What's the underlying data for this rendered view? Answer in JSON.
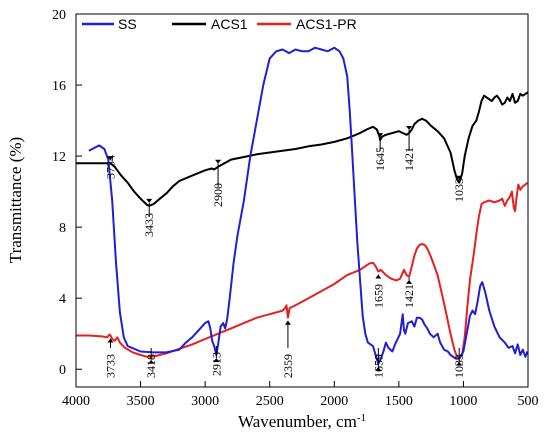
{
  "chart_data": {
    "type": "line",
    "xlabel": "Wavenumber, cm",
    "xlabel_superscript": "-1",
    "ylabel": "Transmittance (%)",
    "xlim": [
      4000,
      500
    ],
    "ylim": [
      -1,
      20
    ],
    "x_reversed": true,
    "x_ticks": [
      4000,
      3500,
      3000,
      2500,
      2000,
      1500,
      1000,
      500
    ],
    "y_ticks": [
      0,
      4,
      8,
      12,
      16,
      20
    ],
    "legend_position": "top",
    "series": [
      {
        "name": "SS",
        "color": "#1f1fd6",
        "points": [
          [
            3900,
            12.3
          ],
          [
            3820,
            12.6
          ],
          [
            3780,
            12.4
          ],
          [
            3750,
            11.8
          ],
          [
            3720,
            9.5
          ],
          [
            3690,
            6.0
          ],
          [
            3660,
            3.2
          ],
          [
            3630,
            1.8
          ],
          [
            3600,
            1.3
          ],
          [
            3500,
            1.0
          ],
          [
            3400,
            0.95
          ],
          [
            3300,
            0.95
          ],
          [
            3200,
            1.1
          ],
          [
            3150,
            1.5
          ],
          [
            3100,
            1.8
          ],
          [
            3050,
            2.2
          ],
          [
            3000,
            2.6
          ],
          [
            2975,
            2.7
          ],
          [
            2960,
            2.3
          ],
          [
            2945,
            1.6
          ],
          [
            2930,
            1.3
          ],
          [
            2913,
            0.8
          ],
          [
            2900,
            1.4
          ],
          [
            2880,
            2.4
          ],
          [
            2860,
            2.6
          ],
          [
            2845,
            2.3
          ],
          [
            2830,
            2.8
          ],
          [
            2810,
            4.0
          ],
          [
            2780,
            6.0
          ],
          [
            2750,
            7.5
          ],
          [
            2700,
            9.5
          ],
          [
            2650,
            12.0
          ],
          [
            2600,
            14.0
          ],
          [
            2550,
            16.0
          ],
          [
            2500,
            17.5
          ],
          [
            2450,
            17.9
          ],
          [
            2400,
            18.0
          ],
          [
            2350,
            17.8
          ],
          [
            2300,
            18.0
          ],
          [
            2250,
            17.9
          ],
          [
            2200,
            17.9
          ],
          [
            2150,
            18.1
          ],
          [
            2100,
            18.0
          ],
          [
            2050,
            17.9
          ],
          [
            2000,
            18.1
          ],
          [
            1960,
            17.9
          ],
          [
            1930,
            17.5
          ],
          [
            1900,
            16.5
          ],
          [
            1880,
            14.5
          ],
          [
            1860,
            12.0
          ],
          [
            1840,
            9.5
          ],
          [
            1820,
            7.0
          ],
          [
            1800,
            5.0
          ],
          [
            1780,
            3.0
          ],
          [
            1760,
            2.0
          ],
          [
            1740,
            1.5
          ],
          [
            1700,
            1.3
          ],
          [
            1680,
            0.8
          ],
          [
            1659,
            0.3
          ],
          [
            1640,
            0.6
          ],
          [
            1620,
            1.0
          ],
          [
            1600,
            1.5
          ],
          [
            1580,
            1.2
          ],
          [
            1550,
            1.0
          ],
          [
            1530,
            1.4
          ],
          [
            1510,
            1.7
          ],
          [
            1490,
            2.0
          ],
          [
            1470,
            3.1
          ],
          [
            1460,
            2.2
          ],
          [
            1450,
            2.0
          ],
          [
            1430,
            2.6
          ],
          [
            1400,
            2.7
          ],
          [
            1380,
            2.4
          ],
          [
            1360,
            2.9
          ],
          [
            1340,
            2.9
          ],
          [
            1320,
            2.8
          ],
          [
            1300,
            2.5
          ],
          [
            1280,
            2.3
          ],
          [
            1260,
            2.0
          ],
          [
            1230,
            1.8
          ],
          [
            1200,
            2.0
          ],
          [
            1180,
            1.5
          ],
          [
            1150,
            1.1
          ],
          [
            1120,
            1.0
          ],
          [
            1100,
            0.8
          ],
          [
            1060,
            0.6
          ],
          [
            1033,
            0.6
          ],
          [
            1000,
            1.0
          ],
          [
            975,
            2.0
          ],
          [
            950,
            3.0
          ],
          [
            930,
            3.3
          ],
          [
            910,
            3.1
          ],
          [
            890,
            3.8
          ],
          [
            870,
            4.7
          ],
          [
            855,
            4.9
          ],
          [
            830,
            4.3
          ],
          [
            800,
            3.3
          ],
          [
            760,
            2.4
          ],
          [
            720,
            1.8
          ],
          [
            680,
            1.5
          ],
          [
            650,
            1.2
          ],
          [
            620,
            1.3
          ],
          [
            600,
            0.9
          ],
          [
            580,
            1.4
          ],
          [
            560,
            0.8
          ],
          [
            540,
            1.1
          ],
          [
            520,
            0.7
          ],
          [
            505,
            1.0
          ]
        ]
      },
      {
        "name": "ACS1",
        "color": "#000000",
        "points": [
          [
            4000,
            11.6
          ],
          [
            3900,
            11.6
          ],
          [
            3800,
            11.6
          ],
          [
            3734,
            11.6
          ],
          [
            3700,
            11.4
          ],
          [
            3650,
            10.9
          ],
          [
            3600,
            10.5
          ],
          [
            3550,
            10.0
          ],
          [
            3500,
            9.6
          ],
          [
            3450,
            9.25
          ],
          [
            3433,
            9.2
          ],
          [
            3400,
            9.3
          ],
          [
            3350,
            9.6
          ],
          [
            3300,
            9.9
          ],
          [
            3250,
            10.3
          ],
          [
            3200,
            10.6
          ],
          [
            3100,
            10.9
          ],
          [
            3000,
            11.2
          ],
          [
            2950,
            11.3
          ],
          [
            2930,
            11.25
          ],
          [
            2900,
            11.4
          ],
          [
            2850,
            11.6
          ],
          [
            2800,
            11.8
          ],
          [
            2700,
            11.95
          ],
          [
            2600,
            12.1
          ],
          [
            2500,
            12.2
          ],
          [
            2400,
            12.3
          ],
          [
            2300,
            12.4
          ],
          [
            2200,
            12.55
          ],
          [
            2100,
            12.65
          ],
          [
            2000,
            12.8
          ],
          [
            1950,
            12.9
          ],
          [
            1900,
            13.0
          ],
          [
            1850,
            13.15
          ],
          [
            1800,
            13.3
          ],
          [
            1750,
            13.5
          ],
          [
            1700,
            13.65
          ],
          [
            1670,
            13.5
          ],
          [
            1650,
            13.1
          ],
          [
            1645,
            12.9
          ],
          [
            1630,
            13.1
          ],
          [
            1600,
            13.2
          ],
          [
            1550,
            13.3
          ],
          [
            1500,
            13.4
          ],
          [
            1470,
            13.3
          ],
          [
            1440,
            13.2
          ],
          [
            1421,
            13.3
          ],
          [
            1400,
            13.5
          ],
          [
            1380,
            13.8
          ],
          [
            1350,
            14.0
          ],
          [
            1320,
            14.1
          ],
          [
            1290,
            14.0
          ],
          [
            1250,
            13.7
          ],
          [
            1200,
            13.4
          ],
          [
            1150,
            13.0
          ],
          [
            1100,
            12.2
          ],
          [
            1070,
            11.2
          ],
          [
            1050,
            10.7
          ],
          [
            1033,
            10.5
          ],
          [
            1010,
            11.0
          ],
          [
            990,
            12.0
          ],
          [
            960,
            13.0
          ],
          [
            930,
            13.7
          ],
          [
            900,
            14.0
          ],
          [
            880,
            14.5
          ],
          [
            860,
            15.1
          ],
          [
            840,
            15.4
          ],
          [
            820,
            15.3
          ],
          [
            800,
            15.2
          ],
          [
            780,
            15.1
          ],
          [
            760,
            15.3
          ],
          [
            740,
            15.4
          ],
          [
            720,
            15.2
          ],
          [
            700,
            14.9
          ],
          [
            680,
            15.0
          ],
          [
            660,
            15.3
          ],
          [
            640,
            15.1
          ],
          [
            620,
            15.5
          ],
          [
            600,
            15.0
          ],
          [
            580,
            15.1
          ],
          [
            560,
            15.5
          ],
          [
            540,
            15.4
          ],
          [
            520,
            15.5
          ],
          [
            500,
            15.6
          ]
        ]
      },
      {
        "name": "ACS1-PR",
        "color": "#e81f1f",
        "points": [
          [
            4000,
            1.9
          ],
          [
            3900,
            1.9
          ],
          [
            3800,
            1.85
          ],
          [
            3760,
            1.8
          ],
          [
            3740,
            1.95
          ],
          [
            3733,
            1.9
          ],
          [
            3720,
            1.7
          ],
          [
            3700,
            1.6
          ],
          [
            3680,
            1.8
          ],
          [
            3660,
            1.5
          ],
          [
            3620,
            1.2
          ],
          [
            3560,
            0.95
          ],
          [
            3500,
            0.8
          ],
          [
            3450,
            0.7
          ],
          [
            3418,
            0.7
          ],
          [
            3380,
            0.75
          ],
          [
            3300,
            0.9
          ],
          [
            3200,
            1.15
          ],
          [
            3100,
            1.4
          ],
          [
            3000,
            1.7
          ],
          [
            2900,
            2.0
          ],
          [
            2800,
            2.3
          ],
          [
            2700,
            2.6
          ],
          [
            2600,
            2.9
          ],
          [
            2500,
            3.1
          ],
          [
            2400,
            3.3
          ],
          [
            2380,
            3.45
          ],
          [
            2370,
            3.6
          ],
          [
            2359,
            2.9
          ],
          [
            2345,
            3.45
          ],
          [
            2330,
            3.5
          ],
          [
            2300,
            3.6
          ],
          [
            2200,
            4.0
          ],
          [
            2100,
            4.4
          ],
          [
            2000,
            4.8
          ],
          [
            1900,
            5.3
          ],
          [
            1800,
            5.6
          ],
          [
            1760,
            5.8
          ],
          [
            1730,
            5.95
          ],
          [
            1700,
            6.0
          ],
          [
            1680,
            5.8
          ],
          [
            1659,
            5.5
          ],
          [
            1640,
            5.6
          ],
          [
            1600,
            5.3
          ],
          [
            1560,
            5.1
          ],
          [
            1520,
            5.0
          ],
          [
            1490,
            5.1
          ],
          [
            1460,
            5.6
          ],
          [
            1440,
            5.3
          ],
          [
            1421,
            5.2
          ],
          [
            1400,
            5.8
          ],
          [
            1380,
            6.4
          ],
          [
            1360,
            6.8
          ],
          [
            1340,
            7.0
          ],
          [
            1320,
            7.05
          ],
          [
            1300,
            7.0
          ],
          [
            1280,
            6.8
          ],
          [
            1250,
            6.3
          ],
          [
            1200,
            5.3
          ],
          [
            1150,
            3.7
          ],
          [
            1100,
            2.0
          ],
          [
            1070,
            1.1
          ],
          [
            1050,
            0.7
          ],
          [
            1033,
            0.6
          ],
          [
            1010,
            0.8
          ],
          [
            990,
            1.8
          ],
          [
            970,
            3.5
          ],
          [
            950,
            5.0
          ],
          [
            920,
            6.5
          ],
          [
            900,
            7.6
          ],
          [
            880,
            8.6
          ],
          [
            860,
            9.3
          ],
          [
            840,
            9.4
          ],
          [
            800,
            9.5
          ],
          [
            760,
            9.4
          ],
          [
            720,
            9.5
          ],
          [
            700,
            9.6
          ],
          [
            680,
            9.2
          ],
          [
            660,
            9.5
          ],
          [
            640,
            9.7
          ],
          [
            625,
            10.0
          ],
          [
            610,
            9.1
          ],
          [
            600,
            8.9
          ],
          [
            590,
            9.6
          ],
          [
            575,
            10.4
          ],
          [
            560,
            10.1
          ],
          [
            540,
            10.3
          ],
          [
            520,
            10.4
          ],
          [
            505,
            10.5
          ]
        ]
      }
    ],
    "annotations": {
      "SS": [
        "3733",
        "3418",
        "2913",
        "2359",
        "1659",
        "1659",
        "1421",
        "1033"
      ],
      "ACS1": [
        "3734",
        "3433",
        "2900",
        "1645",
        "1421",
        "1033"
      ]
    }
  }
}
